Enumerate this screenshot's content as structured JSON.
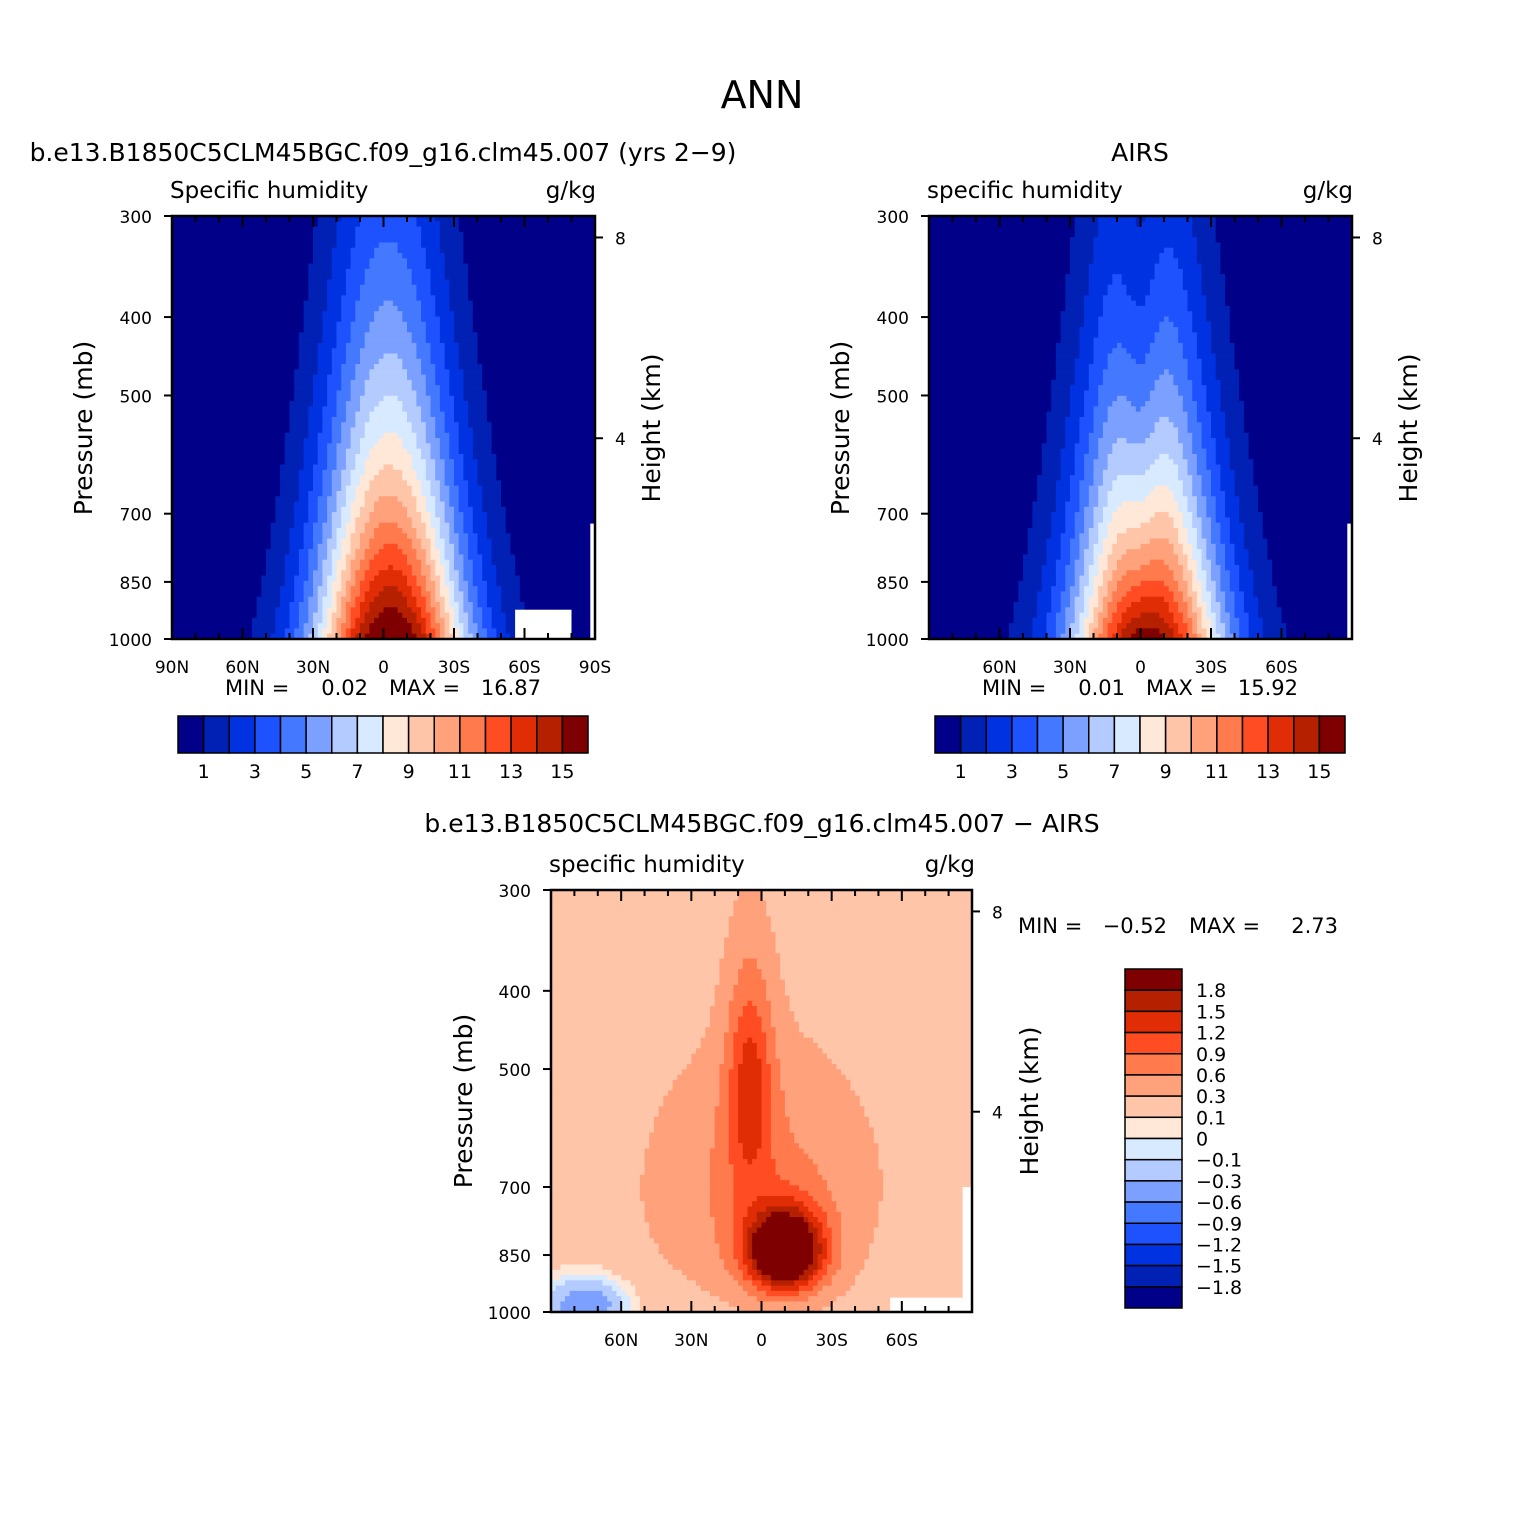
{
  "figure": {
    "title": "ANN"
  },
  "colors": {
    "abs_levels": [
      "#000089",
      "#0121b5",
      "#0132e1",
      "#1e52ff",
      "#4478ff",
      "#7ba0ff",
      "#b3cbff",
      "#d7eaff",
      "#ffe8d7",
      "#ffc5a9",
      "#ffa17b",
      "#ff7a4c",
      "#ff4c22",
      "#e02d05",
      "#b52000",
      "#7f0000"
    ],
    "diff_levels": [
      "#000089",
      "#0121b5",
      "#0132e1",
      "#1e52ff",
      "#4478ff",
      "#7ba0ff",
      "#b3cbff",
      "#d7eaff",
      "#ffe8d7",
      "#ffc5a9",
      "#ffa17b",
      "#ff7a4c",
      "#ff4c22",
      "#e02d05",
      "#b52000",
      "#7f0000"
    ]
  },
  "chart_data": [
    {
      "type": "heatmap",
      "title": "b.e13.B1850C5CLM45BGC.f09_g16.clm45.007 (yrs 2−9)",
      "left_label": "Specific humidity",
      "right_label": "g/kg",
      "ylabel": "Pressure (mb)",
      "y2label": "Height (km)",
      "yticks": [
        "300",
        "400",
        "500",
        "700",
        "850",
        "1000"
      ],
      "ytick_values": [
        300,
        400,
        500,
        700,
        850,
        1000
      ],
      "y2ticks": [
        "8",
        "4"
      ],
      "y2tick_values": [
        8,
        4
      ],
      "xticks": [
        "90N",
        "60N",
        "30N",
        "0",
        "30S",
        "60S",
        "90S"
      ],
      "xtick_values": [
        90,
        60,
        30,
        0,
        -30,
        -60,
        -90
      ],
      "xlim": [
        90,
        -90
      ],
      "ylim": [
        300,
        1000
      ],
      "stats": {
        "min_label": "MIN =",
        "min": "0.02",
        "max_label": "MAX =",
        "max": "16.87"
      },
      "colorbar": {
        "orientation": "horizontal",
        "labels": [
          "1",
          "3",
          "5",
          "7",
          "9",
          "11",
          "13",
          "15"
        ],
        "label_values": [
          1,
          3,
          5,
          7,
          9,
          11,
          13,
          15
        ]
      },
      "field": {
        "lat": [
          90,
          0,
          -90
        ],
        "surface_max": 16.87,
        "tropical_top_pressure": 380
      }
    },
    {
      "type": "heatmap",
      "title": "AIRS",
      "left_label": "specific humidity",
      "right_label": "g/kg",
      "ylabel": "Pressure (mb)",
      "y2label": "Height (km)",
      "yticks": [
        "300",
        "400",
        "500",
        "700",
        "850",
        "1000"
      ],
      "ytick_values": [
        300,
        400,
        500,
        700,
        850,
        1000
      ],
      "y2ticks": [
        "8",
        "4"
      ],
      "y2tick_values": [
        8,
        4
      ],
      "xticks": [
        "60N",
        "30N",
        "0",
        "30S",
        "60S"
      ],
      "xtick_values": [
        60,
        30,
        0,
        -30,
        -60
      ],
      "xlim": [
        90,
        -90
      ],
      "ylim": [
        300,
        1000
      ],
      "stats": {
        "min_label": "MIN =",
        "min": "0.01",
        "max_label": "MAX =",
        "max": "15.92"
      },
      "colorbar": {
        "orientation": "horizontal",
        "labels": [
          "1",
          "3",
          "5",
          "7",
          "9",
          "11",
          "13",
          "15"
        ],
        "label_values": [
          1,
          3,
          5,
          7,
          9,
          11,
          13,
          15
        ]
      },
      "field": {
        "lat": [
          90,
          0,
          -90
        ],
        "surface_max": 15.92,
        "tropical_top_pressure": 450
      }
    },
    {
      "type": "heatmap",
      "title": "b.e13.B1850C5CLM45BGC.f09_g16.clm45.007 − AIRS",
      "left_label": "specific humidity",
      "right_label": "g/kg",
      "ylabel": "Pressure (mb)",
      "y2label": "Height (km)",
      "yticks": [
        "300",
        "400",
        "500",
        "700",
        "850",
        "1000"
      ],
      "ytick_values": [
        300,
        400,
        500,
        700,
        850,
        1000
      ],
      "y2ticks": [
        "8",
        "4"
      ],
      "y2tick_values": [
        8,
        4
      ],
      "xticks": [
        "60N",
        "30N",
        "0",
        "30S",
        "60S"
      ],
      "xtick_values": [
        60,
        30,
        0,
        -30,
        -60
      ],
      "xlim": [
        90,
        -90
      ],
      "ylim": [
        300,
        1000
      ],
      "stats": {
        "min_label": "MIN =",
        "min": "−0.52",
        "max_label": "MAX =",
        "max": "2.73"
      },
      "colorbar": {
        "orientation": "vertical",
        "labels": [
          "1.8",
          "1.5",
          "1.2",
          "0.9",
          "0.6",
          "0.3",
          "0.1",
          "0",
          "−0.1",
          "−0.3",
          "−0.6",
          "−0.9",
          "−1.2",
          "−1.5",
          "−1.8"
        ],
        "label_values": [
          1.8,
          1.5,
          1.2,
          0.9,
          0.6,
          0.3,
          0.1,
          0,
          -0.1,
          -0.3,
          -0.6,
          -0.9,
          -1.2,
          -1.5,
          -1.8
        ]
      },
      "field": {
        "max_center_lat": -10,
        "max_center_pressure": 840,
        "max": 2.73,
        "min": -0.52
      }
    }
  ]
}
